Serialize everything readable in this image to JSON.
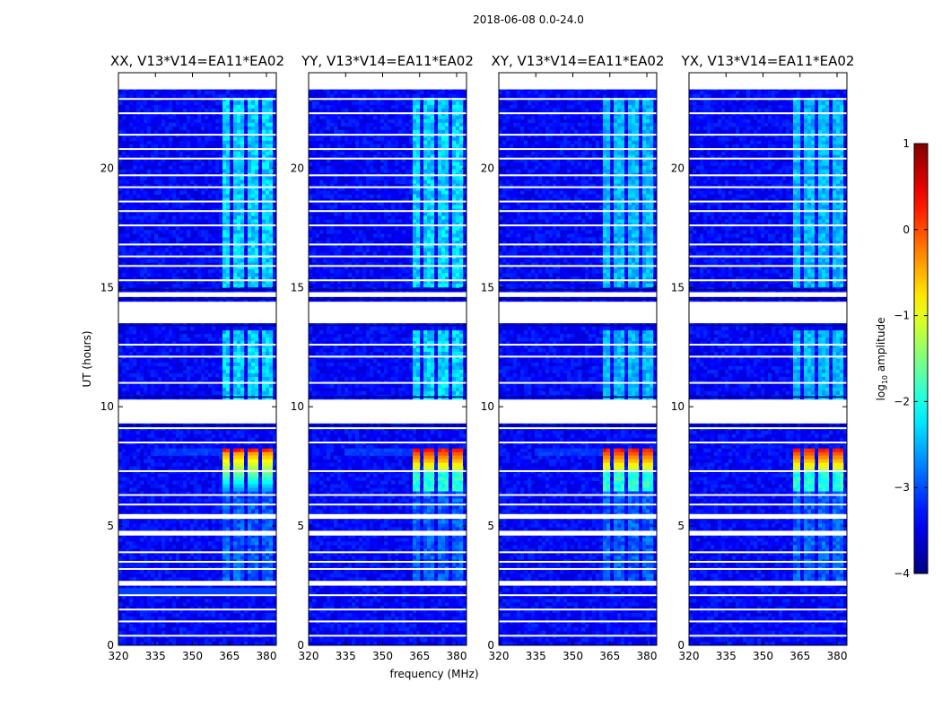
{
  "chart_data": {
    "type": "heatmap",
    "suptitle": "2018-06-08 0.0-24.0",
    "xlabel": "frequency (MHz)",
    "ylabel": "UT (hours)",
    "x_ticks": [
      "320",
      "335",
      "350",
      "365",
      "380"
    ],
    "x_tick_values": [
      320,
      335,
      350,
      365,
      380
    ],
    "y_ticks": [
      "0",
      "5",
      "10",
      "15",
      "20"
    ],
    "y_tick_values": [
      0,
      5,
      10,
      15,
      20
    ],
    "xlim": [
      320,
      384
    ],
    "ylim": [
      0,
      24
    ],
    "colorbar": {
      "label": "log10 amplitude",
      "label_main": "log",
      "label_sub": "10",
      "label_rest": " amplitude",
      "ticks": [
        "1",
        "0",
        "−1",
        "−2",
        "−3",
        "−4"
      ],
      "tick_values": [
        1,
        0,
        -1,
        -2,
        -3,
        -4
      ],
      "range": [
        -4,
        1
      ],
      "colormap": "jet"
    },
    "panels": [
      {
        "title": "XX, V13*V14=EA11*EA02"
      },
      {
        "title": "YY, V13*V14=EA11*EA02"
      },
      {
        "title": "XY, V13*V14=EA11*EA02"
      },
      {
        "title": "YX, V13*V14=EA11*EA02"
      }
    ],
    "flagged_time_ranges_hours": [
      [
        9.3,
        10.3
      ],
      [
        13.5,
        14.4
      ],
      [
        14.6,
        14.8
      ],
      [
        4.6,
        4.8
      ],
      [
        5.3,
        5.5
      ],
      [
        2.5,
        2.7
      ],
      [
        23.3,
        24.0
      ]
    ],
    "rfi_channels_mhz": [
      [
        361.5,
        365.5
      ],
      [
        366.5,
        370.5
      ],
      [
        372.5,
        376.5
      ],
      [
        378,
        382
      ]
    ],
    "strong_event": {
      "utc_start": 6.5,
      "utc_end": 8.3,
      "peak_log_amplitude": 0.4
    }
  }
}
